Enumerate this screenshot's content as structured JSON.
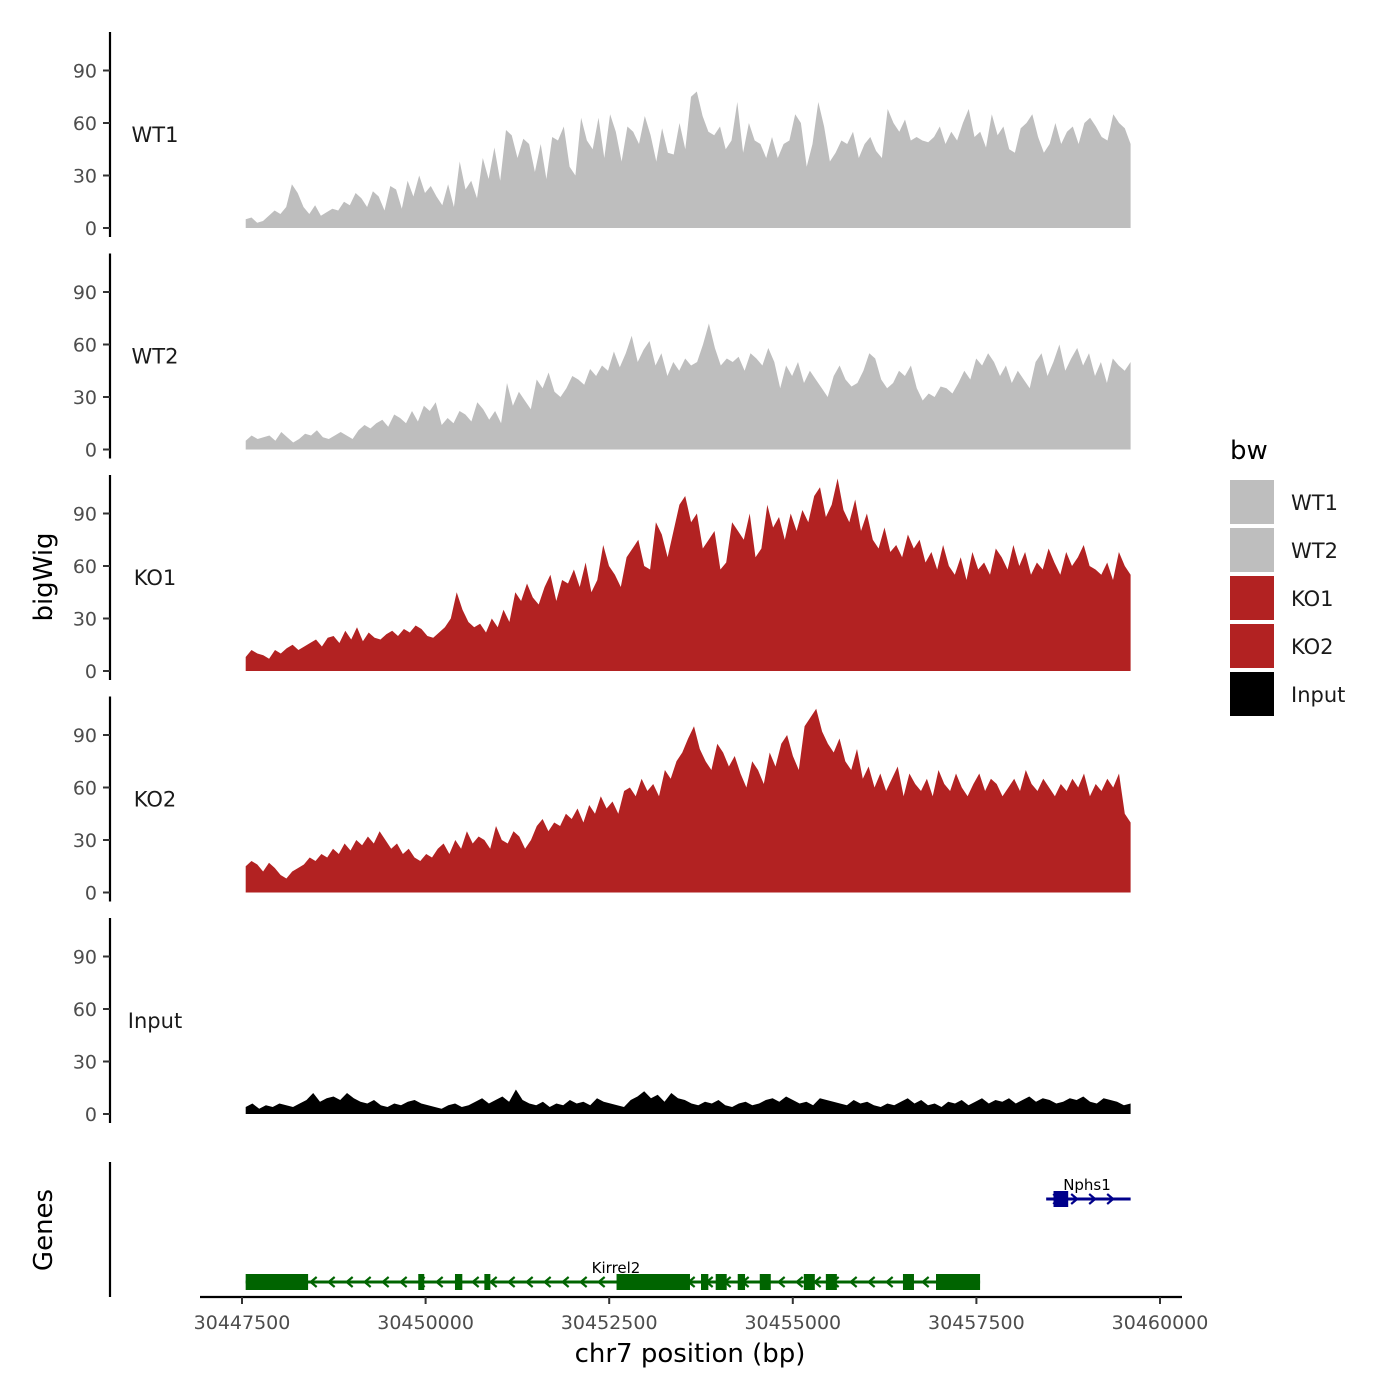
{
  "chart_data": {
    "type": "area",
    "ylabel": "bigWig",
    "xlabel": "chr7 position (bp)",
    "genes_label": "Genes",
    "xlim": [
      30447500,
      30460000
    ],
    "data_range": [
      30447550,
      30459600
    ],
    "x_ticks": [
      30447500,
      30450000,
      30452500,
      30455000,
      30457500,
      30460000
    ],
    "x_tick_labels": [
      "30447500",
      "30450000",
      "30452500",
      "30455000",
      "30457500",
      "30460000"
    ],
    "ylim": [
      0,
      112
    ],
    "y_ticks": [
      0,
      30,
      60,
      90
    ],
    "y_tick_labels": [
      "0",
      "30",
      "60",
      "90"
    ],
    "legend_title": "bw",
    "legend": [
      {
        "label": "WT1",
        "color": "#bebebe"
      },
      {
        "label": "WT2",
        "color": "#bebebe"
      },
      {
        "label": "KO1",
        "color": "#b22222"
      },
      {
        "label": "KO2",
        "color": "#b22222"
      },
      {
        "label": "Input",
        "color": "#000000"
      }
    ],
    "series": [
      {
        "name": "WT1",
        "color": "#bebebe",
        "values": [
          5,
          6,
          3,
          4,
          7,
          10,
          8,
          12,
          25,
          20,
          12,
          8,
          13,
          7,
          9,
          11,
          10,
          15,
          13,
          20,
          17,
          12,
          21,
          18,
          10,
          24,
          22,
          11,
          27,
          18,
          30,
          20,
          24,
          18,
          13,
          25,
          12,
          38,
          22,
          27,
          17,
          40,
          28,
          46,
          27,
          56,
          53,
          40,
          51,
          48,
          32,
          48,
          28,
          52,
          50,
          58,
          35,
          30,
          63,
          50,
          45,
          63,
          40,
          65,
          55,
          38,
          58,
          55,
          48,
          64,
          53,
          38,
          57,
          43,
          42,
          60,
          45,
          75,
          78,
          64,
          55,
          53,
          58,
          45,
          50,
          72,
          43,
          60,
          50,
          48,
          40,
          52,
          40,
          48,
          50,
          65,
          60,
          35,
          48,
          72,
          58,
          38,
          43,
          50,
          48,
          55,
          40,
          48,
          52,
          44,
          40,
          68,
          60,
          55,
          62,
          50,
          52,
          50,
          49,
          52,
          58,
          48,
          55,
          50,
          60,
          68,
          52,
          55,
          46,
          65,
          53,
          58,
          45,
          43,
          57,
          60,
          65,
          52,
          43,
          48,
          60,
          48,
          55,
          58,
          48,
          60,
          63,
          58,
          52,
          50,
          65,
          60,
          57,
          48
        ]
      },
      {
        "name": "WT2",
        "color": "#bebebe",
        "values": [
          5,
          8,
          6,
          7,
          8,
          5,
          10,
          7,
          4,
          6,
          9,
          8,
          11,
          7,
          6,
          8,
          10,
          8,
          6,
          11,
          14,
          12,
          15,
          17,
          13,
          20,
          18,
          15,
          22,
          16,
          25,
          22,
          27,
          14,
          18,
          15,
          22,
          20,
          16,
          27,
          23,
          17,
          22,
          15,
          38,
          25,
          33,
          28,
          23,
          40,
          35,
          44,
          33,
          30,
          35,
          42,
          40,
          37,
          46,
          42,
          48,
          45,
          56,
          47,
          55,
          65,
          50,
          57,
          62,
          48,
          55,
          42,
          50,
          45,
          52,
          48,
          50,
          60,
          72,
          58,
          48,
          52,
          50,
          53,
          45,
          55,
          52,
          48,
          58,
          50,
          35,
          48,
          42,
          50,
          38,
          45,
          40,
          35,
          30,
          42,
          48,
          40,
          36,
          38,
          45,
          55,
          52,
          40,
          35,
          38,
          45,
          42,
          48,
          35,
          28,
          32,
          30,
          36,
          35,
          32,
          38,
          45,
          40,
          52,
          48,
          55,
          50,
          42,
          48,
          38,
          45,
          40,
          35,
          50,
          55,
          42,
          50,
          60,
          45,
          52,
          58,
          48,
          55,
          42,
          50,
          38,
          52,
          48,
          45,
          50
        ]
      },
      {
        "name": "KO1",
        "color": "#b22222",
        "values": [
          8,
          12,
          10,
          9,
          7,
          12,
          10,
          13,
          15,
          12,
          14,
          16,
          18,
          14,
          19,
          20,
          16,
          23,
          18,
          25,
          17,
          22,
          19,
          18,
          21,
          23,
          20,
          24,
          22,
          26,
          24,
          20,
          19,
          22,
          25,
          30,
          45,
          35,
          28,
          25,
          27,
          22,
          30,
          25,
          35,
          28,
          45,
          40,
          50,
          42,
          38,
          48,
          55,
          40,
          52,
          50,
          58,
          48,
          62,
          45,
          52,
          72,
          60,
          55,
          48,
          65,
          70,
          75,
          60,
          58,
          85,
          78,
          65,
          80,
          95,
          100,
          85,
          90,
          70,
          75,
          80,
          58,
          62,
          85,
          80,
          75,
          90,
          65,
          70,
          95,
          82,
          88,
          75,
          90,
          80,
          92,
          85,
          100,
          105,
          88,
          95,
          110,
          92,
          85,
          98,
          80,
          90,
          75,
          70,
          82,
          68,
          72,
          65,
          78,
          70,
          75,
          62,
          68,
          58,
          72,
          60,
          55,
          65,
          52,
          68,
          58,
          62,
          55,
          70,
          65,
          58,
          72,
          60,
          68,
          55,
          62,
          58,
          70,
          62,
          55,
          68,
          60,
          65,
          72,
          60,
          58,
          55,
          62,
          52,
          68,
          60,
          55
        ]
      },
      {
        "name": "KO2",
        "color": "#b22222",
        "values": [
          15,
          18,
          16,
          12,
          17,
          14,
          10,
          8,
          12,
          14,
          16,
          20,
          18,
          22,
          20,
          25,
          22,
          28,
          24,
          30,
          27,
          32,
          28,
          35,
          30,
          25,
          28,
          22,
          25,
          20,
          18,
          22,
          20,
          25,
          28,
          22,
          30,
          25,
          35,
          28,
          32,
          30,
          25,
          38,
          30,
          28,
          35,
          32,
          25,
          30,
          38,
          42,
          35,
          40,
          38,
          45,
          42,
          48,
          40,
          50,
          45,
          55,
          48,
          52,
          45,
          58,
          60,
          55,
          65,
          58,
          62,
          55,
          70,
          65,
          75,
          80,
          88,
          95,
          82,
          75,
          70,
          85,
          80,
          72,
          78,
          68,
          60,
          75,
          70,
          62,
          80,
          72,
          85,
          90,
          78,
          70,
          95,
          100,
          105,
          92,
          85,
          80,
          88,
          75,
          70,
          82,
          65,
          72,
          60,
          68,
          58,
          65,
          72,
          55,
          68,
          62,
          58,
          65,
          55,
          70,
          62,
          58,
          68,
          60,
          55,
          62,
          68,
          58,
          65,
          62,
          55,
          60,
          65,
          58,
          70,
          62,
          58,
          65,
          60,
          55,
          62,
          58,
          65,
          60,
          68,
          55,
          62,
          58,
          65,
          60,
          68,
          45,
          40
        ]
      },
      {
        "name": "Input",
        "color": "#000000",
        "values": [
          4,
          6,
          3,
          5,
          4,
          6,
          5,
          4,
          6,
          8,
          12,
          7,
          9,
          10,
          8,
          12,
          9,
          7,
          6,
          8,
          5,
          4,
          6,
          5,
          7,
          8,
          6,
          5,
          4,
          3,
          5,
          6,
          4,
          5,
          7,
          9,
          6,
          8,
          10,
          7,
          14,
          8,
          6,
          5,
          7,
          4,
          6,
          5,
          8,
          6,
          7,
          5,
          9,
          7,
          6,
          5,
          4,
          8,
          10,
          13,
          9,
          11,
          7,
          12,
          9,
          8,
          6,
          5,
          7,
          6,
          8,
          5,
          4,
          6,
          7,
          5,
          6,
          8,
          9,
          7,
          10,
          8,
          6,
          7,
          5,
          9,
          8,
          7,
          6,
          5,
          8,
          6,
          7,
          5,
          4,
          6,
          5,
          7,
          9,
          6,
          8,
          5,
          6,
          4,
          7,
          6,
          8,
          5,
          7,
          9,
          6,
          8,
          7,
          9,
          6,
          8,
          10,
          7,
          9,
          8,
          6,
          7,
          9,
          8,
          10,
          7,
          6,
          9,
          8,
          7,
          5,
          6
        ]
      }
    ],
    "genes": [
      {
        "name": "Kirrel2",
        "strand": "-",
        "start": 30447550,
        "end": 30457550,
        "exons": [
          [
            30447550,
            30448400
          ],
          [
            30449900,
            30449980
          ],
          [
            30450400,
            30450500
          ],
          [
            30450800,
            30450880
          ],
          [
            30452600,
            30453600
          ],
          [
            30453750,
            30453850
          ],
          [
            30453950,
            30454100
          ],
          [
            30454250,
            30454350
          ],
          [
            30454550,
            30454700
          ],
          [
            30455150,
            30455300
          ],
          [
            30455450,
            30455600
          ],
          [
            30456500,
            30456650
          ],
          [
            30456950,
            30457550
          ]
        ]
      },
      {
        "name": "Nphs1",
        "strand": "+",
        "start": 30458450,
        "end": 30459600,
        "exons": [
          [
            30458550,
            30458750
          ]
        ]
      }
    ]
  }
}
